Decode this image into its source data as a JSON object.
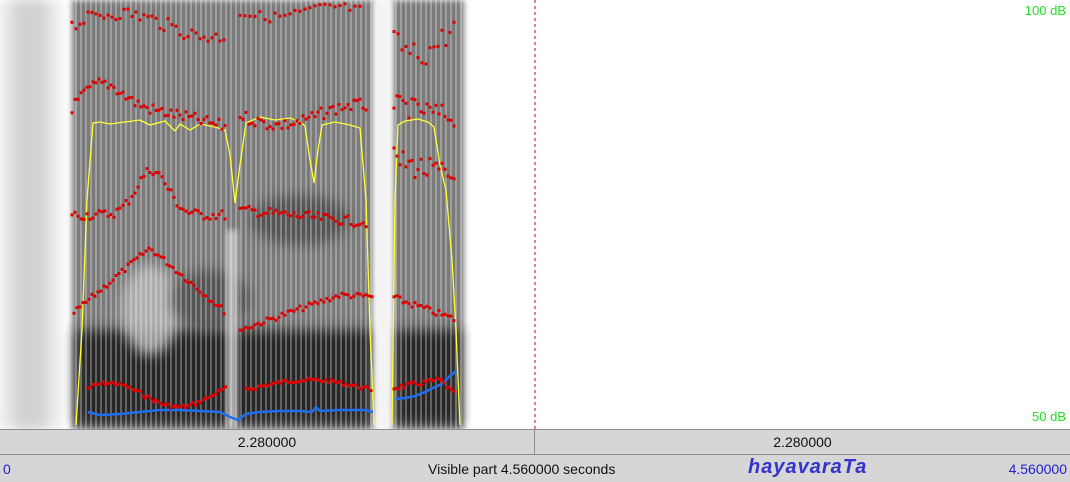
{
  "spectrogram": {
    "db_max_label": "100 dB",
    "db_min_label": "50 dB",
    "cursor_time_s": 2.28,
    "visible_start_s": 0,
    "visible_end_s": 4.56,
    "colors": {
      "formants": "#dd0000",
      "intensity": "#ffff33",
      "pitch": "#1e6ef0",
      "cursor": "#cc0000",
      "db_labels": "#22dd22"
    }
  },
  "time_bar": {
    "left_segment": "2.280000",
    "right_segment": "2.280000"
  },
  "status": {
    "start": "0",
    "visible_part": "Visible part 4.560000 seconds",
    "word": "hayavaraTa",
    "end": "4.560000"
  }
}
